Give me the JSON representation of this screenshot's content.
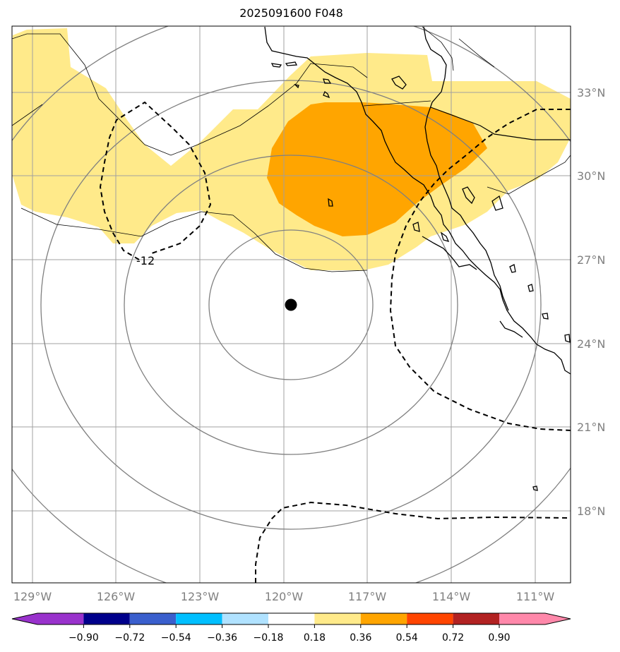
{
  "title": "2025091600 F048",
  "map": {
    "lon_range": [
      -130.2,
      -110.2
    ],
    "lat_range": [
      15.0,
      35.0
    ],
    "lon_ticks": [
      {
        "lon": -129,
        "label": "129°W"
      },
      {
        "lon": -126,
        "label": "126°W"
      },
      {
        "lon": -123,
        "label": "123°W"
      },
      {
        "lon": -120,
        "label": "120°W"
      },
      {
        "lon": -117,
        "label": "117°W"
      },
      {
        "lon": -114,
        "label": "114°W"
      },
      {
        "lon": -111,
        "label": "111°W"
      }
    ],
    "lat_ticks": [
      {
        "lat": 33,
        "label": "33°N"
      },
      {
        "lat": 30,
        "label": "30°N"
      },
      {
        "lat": 27,
        "label": "27°N"
      },
      {
        "lat": 24,
        "label": "24°N"
      },
      {
        "lat": 21,
        "label": "21°N"
      },
      {
        "lat": 18,
        "label": "18°N"
      }
    ],
    "storm_center": {
      "lon": -119.8,
      "lat": 25.4
    },
    "contour_label": "-12",
    "colors": {
      "fill_low": "#ffea8a",
      "fill_mid": "#ffa500",
      "grid": "#a0a0a0",
      "range_rings": "#808080",
      "coast": "#000000"
    }
  },
  "colorbar": {
    "colors": [
      "#9932cc",
      "#00008b",
      "#3a5fcd",
      "#00bfff",
      "#b0e2ff",
      "#ffffff",
      "#ffea8a",
      "#ffa500",
      "#ff4500",
      "#b22222",
      "#ff88aa"
    ],
    "labels": [
      "−0.90",
      "−0.72",
      "−0.54",
      "−0.36",
      "−0.18",
      "0.18",
      "0.36",
      "0.54",
      "0.72",
      "0.90"
    ]
  }
}
